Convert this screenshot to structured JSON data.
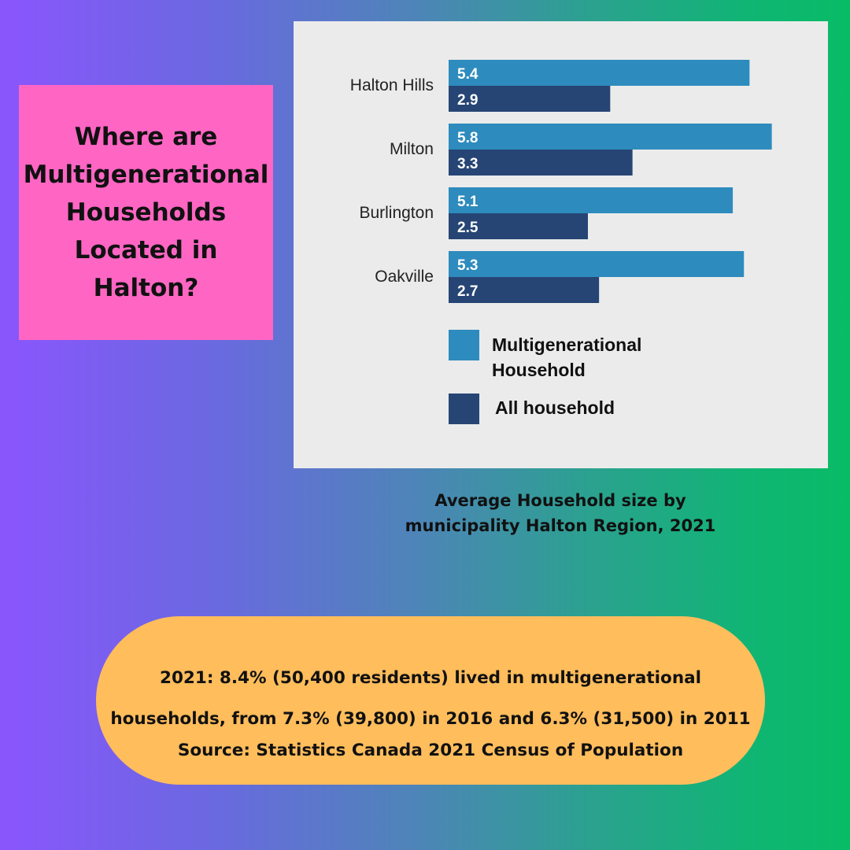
{
  "title": "Where are\nMultigenerational\nHouseholds\nLocated in\nHalton?",
  "caption": "Average Household size by\nmunicipality Halton Region, 2021",
  "note": {
    "line1": "2021: 8.4% (50,400 residents) lived in multigenerational",
    "line2": "households, from 7.3% (39,800) in 2016 and 6.3% (31,500) in 2011",
    "line3": "Source: Statistics Canada 2021 Census of Population"
  },
  "colors": {
    "multigenerational": "#2e8bbd",
    "all": "#264574",
    "title_box": "#ff66c4",
    "note_pill": "#ffbd5c"
  },
  "chart_data": {
    "type": "bar",
    "orientation": "horizontal",
    "categories": [
      "Halton Hills",
      "Milton",
      "Burlington",
      "Oakville"
    ],
    "series": [
      {
        "name": "Multigenerational Household",
        "values": [
          5.4,
          5.8,
          5.1,
          5.3
        ]
      },
      {
        "name": "All household",
        "values": [
          2.9,
          3.3,
          2.5,
          2.7
        ]
      }
    ],
    "legend": [
      {
        "label": "Multigenerational\nHousehold"
      },
      {
        "label": "All household"
      }
    ],
    "legend_position": "bottom",
    "grid": false,
    "xlim": [
      0,
      6
    ]
  }
}
